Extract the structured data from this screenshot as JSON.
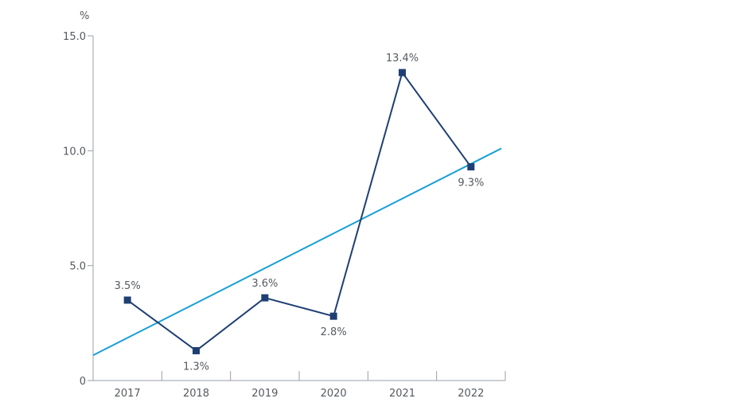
{
  "chart_data": {
    "type": "line",
    "title": "",
    "xlabel": "",
    "ylabel": "%",
    "categories": [
      "2017",
      "2018",
      "2019",
      "2020",
      "2021",
      "2022"
    ],
    "ylim": [
      0,
      15
    ],
    "yticks": [
      0,
      5,
      10,
      15
    ],
    "ytick_labels": [
      "0",
      "5.0",
      "10.0",
      "15.0"
    ],
    "grid": false,
    "legend": "none",
    "series": [
      {
        "values": [
          3.5,
          1.3,
          3.6,
          2.8,
          13.4,
          9.3
        ],
        "labels": [
          "3.5%",
          "1.3%",
          "3.6%",
          "2.8%",
          "13.4%",
          "9.3%"
        ],
        "color": "#1f3f73",
        "marker": "square"
      }
    ],
    "trendline": {
      "start_value": 1.1,
      "end_value": 10.1,
      "color": "#1aa0d6"
    }
  }
}
